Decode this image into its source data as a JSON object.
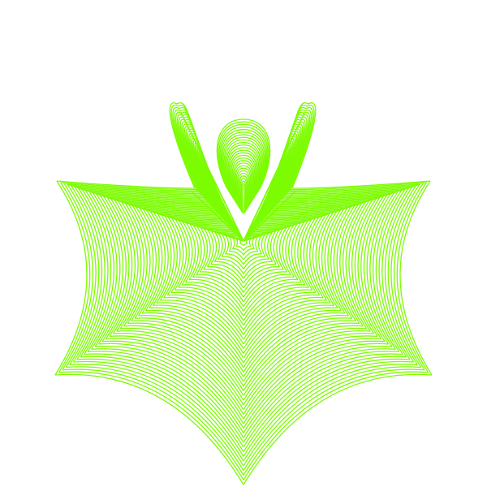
{
  "figure": {
    "background_color": "#ffffff",
    "stroke_color": "#7cfc00"
  }
}
